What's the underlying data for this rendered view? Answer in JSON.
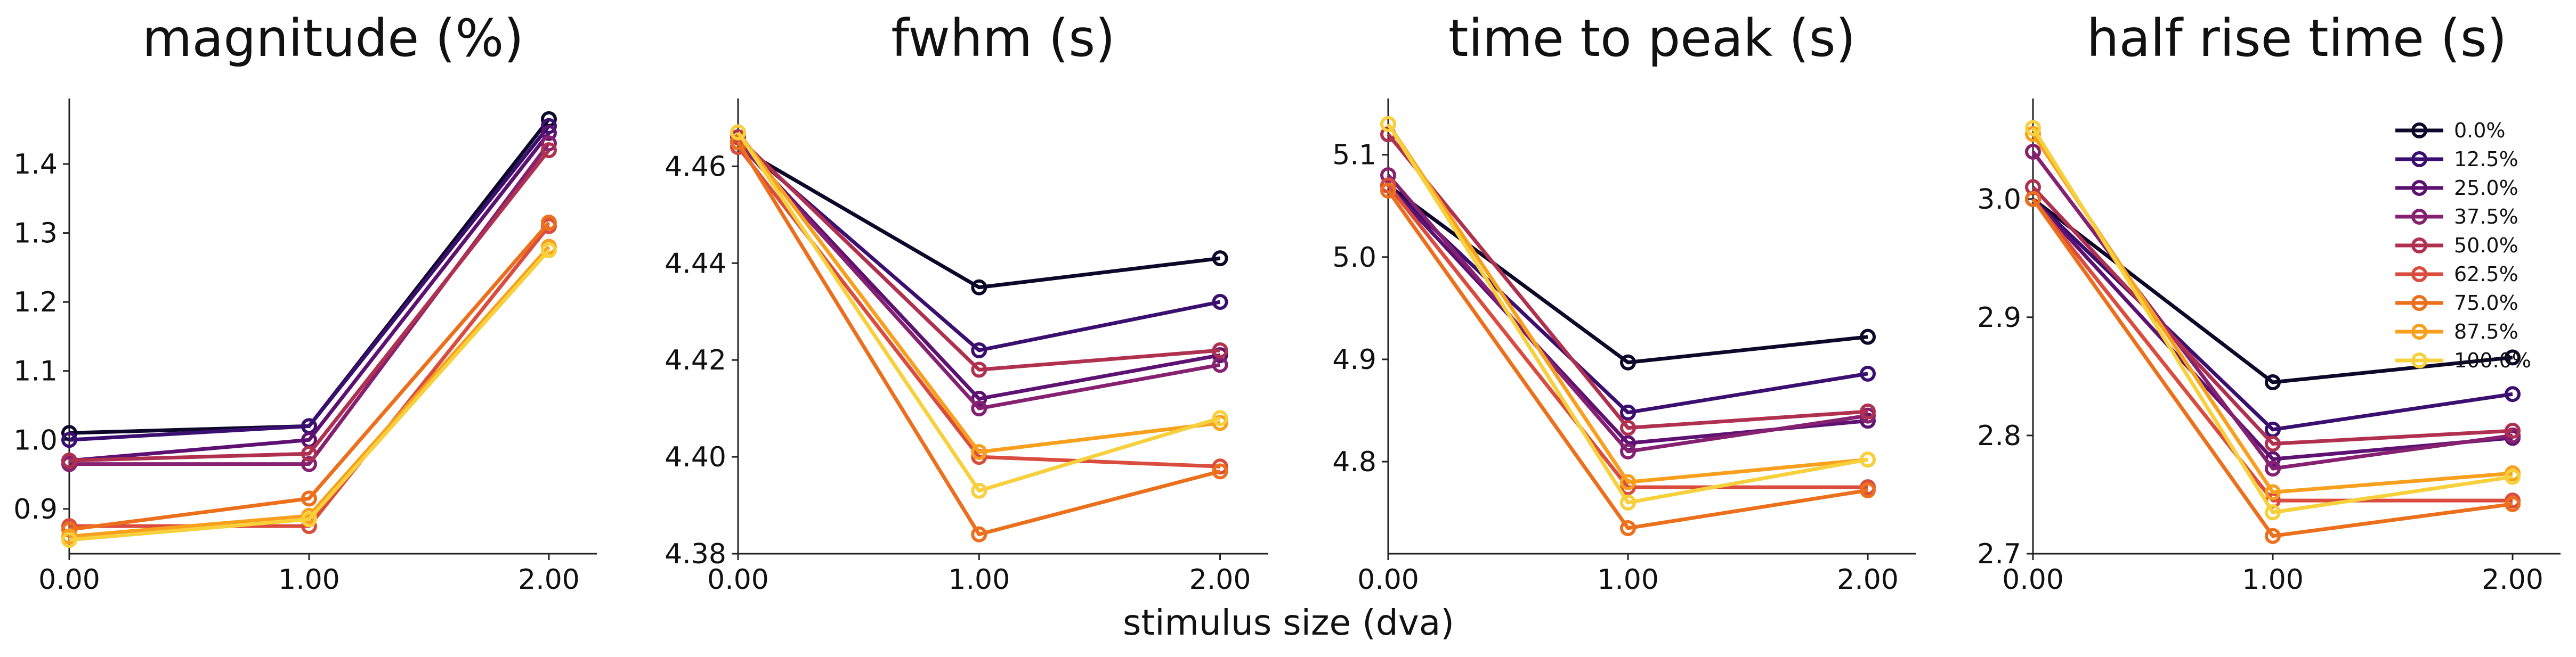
{
  "figure": {
    "xlabel": "stimulus size (dva)"
  },
  "chart_data": [
    {
      "type": "line",
      "title": "magnitude (%)",
      "x": [
        0,
        1,
        2
      ],
      "xticks": [
        "0.00",
        "1.00",
        "2.00"
      ],
      "xlim": [
        0,
        2.2
      ],
      "ylim": [
        0.835,
        1.495
      ],
      "yticks": [
        "0.9",
        "1.0",
        "1.1",
        "1.2",
        "1.3",
        "1.4"
      ],
      "ytick_values": [
        0.9,
        1.0,
        1.1,
        1.2,
        1.3,
        1.4
      ],
      "series": [
        {
          "name": "0.0%",
          "values": [
            1.01,
            1.02,
            1.465
          ]
        },
        {
          "name": "12.5%",
          "values": [
            1.0,
            1.02,
            1.455
          ]
        },
        {
          "name": "25.0%",
          "values": [
            0.97,
            1.0,
            1.445
          ]
        },
        {
          "name": "37.5%",
          "values": [
            0.965,
            0.965,
            1.43
          ]
        },
        {
          "name": "50.0%",
          "values": [
            0.97,
            0.98,
            1.42
          ]
        },
        {
          "name": "62.5%",
          "values": [
            0.875,
            0.875,
            1.31
          ]
        },
        {
          "name": "75.0%",
          "values": [
            0.87,
            0.915,
            1.315
          ]
        },
        {
          "name": "87.5%",
          "values": [
            0.86,
            0.89,
            1.28
          ]
        },
        {
          "name": "100.0%",
          "values": [
            0.855,
            0.885,
            1.275
          ]
        }
      ]
    },
    {
      "type": "line",
      "title": "fwhm (s)",
      "x": [
        0,
        1,
        2
      ],
      "xticks": [
        "0.00",
        "1.00",
        "2.00"
      ],
      "xlim": [
        0,
        2.2
      ],
      "ylim": [
        4.38,
        4.474
      ],
      "yticks": [
        "4.38",
        "4.40",
        "4.42",
        "4.44",
        "4.46"
      ],
      "ytick_values": [
        4.38,
        4.4,
        4.42,
        4.44,
        4.46
      ],
      "series": [
        {
          "name": "0.0%",
          "values": [
            4.464,
            4.435,
            4.441
          ]
        },
        {
          "name": "12.5%",
          "values": [
            4.465,
            4.422,
            4.432
          ]
        },
        {
          "name": "25.0%",
          "values": [
            4.465,
            4.412,
            4.421
          ]
        },
        {
          "name": "37.5%",
          "values": [
            4.465,
            4.41,
            4.419
          ]
        },
        {
          "name": "50.0%",
          "values": [
            4.466,
            4.418,
            4.422
          ]
        },
        {
          "name": "62.5%",
          "values": [
            4.464,
            4.4,
            4.398
          ]
        },
        {
          "name": "75.0%",
          "values": [
            4.465,
            4.384,
            4.397
          ]
        },
        {
          "name": "87.5%",
          "values": [
            4.467,
            4.401,
            4.407
          ]
        },
        {
          "name": "100.0%",
          "values": [
            4.467,
            4.393,
            4.408
          ]
        }
      ]
    },
    {
      "type": "line",
      "title": "time to peak (s)",
      "x": [
        0,
        1,
        2
      ],
      "xticks": [
        "0.00",
        "1.00",
        "2.00"
      ],
      "xlim": [
        0,
        2.2
      ],
      "ylim": [
        4.71,
        5.155
      ],
      "yticks": [
        "4.8",
        "4.9",
        "5.0",
        "5.1"
      ],
      "ytick_values": [
        4.8,
        4.9,
        5.0,
        5.1
      ],
      "series": [
        {
          "name": "0.0%",
          "values": [
            5.07,
            4.897,
            4.922
          ]
        },
        {
          "name": "12.5%",
          "values": [
            5.07,
            4.848,
            4.886
          ]
        },
        {
          "name": "25.0%",
          "values": [
            5.07,
            4.818,
            4.84
          ]
        },
        {
          "name": "37.5%",
          "values": [
            5.08,
            4.81,
            4.845
          ]
        },
        {
          "name": "50.0%",
          "values": [
            5.12,
            4.833,
            4.849
          ]
        },
        {
          "name": "62.5%",
          "values": [
            5.07,
            4.775,
            4.775
          ]
        },
        {
          "name": "75.0%",
          "values": [
            5.065,
            4.735,
            4.772
          ]
        },
        {
          "name": "87.5%",
          "values": [
            5.13,
            4.78,
            4.802
          ]
        },
        {
          "name": "100.0%",
          "values": [
            5.13,
            4.76,
            4.802
          ]
        }
      ]
    },
    {
      "type": "line",
      "title": "half rise time (s)",
      "x": [
        0,
        1,
        2
      ],
      "xticks": [
        "0.00",
        "1.00",
        "2.00"
      ],
      "xlim": [
        0,
        2.2
      ],
      "ylim": [
        2.7,
        3.085
      ],
      "yticks": [
        "2.7",
        "2.8",
        "2.9",
        "3.0"
      ],
      "ytick_values": [
        2.7,
        2.8,
        2.9,
        3.0
      ],
      "series": [
        {
          "name": "0.0%",
          "values": [
            3.0,
            2.845,
            2.866
          ]
        },
        {
          "name": "12.5%",
          "values": [
            3.0,
            2.805,
            2.835
          ]
        },
        {
          "name": "25.0%",
          "values": [
            3.0,
            2.78,
            2.798
          ]
        },
        {
          "name": "37.5%",
          "values": [
            3.04,
            2.772,
            2.8
          ]
        },
        {
          "name": "50.0%",
          "values": [
            3.01,
            2.793,
            2.804
          ]
        },
        {
          "name": "62.5%",
          "values": [
            3.0,
            2.745,
            2.745
          ]
        },
        {
          "name": "75.0%",
          "values": [
            3.0,
            2.715,
            2.742
          ]
        },
        {
          "name": "87.5%",
          "values": [
            3.055,
            2.752,
            2.768
          ]
        },
        {
          "name": "100.0%",
          "values": [
            3.06,
            2.735,
            2.765
          ]
        }
      ],
      "legend": {
        "placement": "upper-right",
        "entries": [
          "0.0%",
          "12.5%",
          "25.0%",
          "37.5%",
          "50.0%",
          "62.5%",
          "75.0%",
          "87.5%",
          "100.0%"
        ]
      }
    }
  ],
  "colors": [
    "#0d0829",
    "#3b0f70",
    "#5d1272",
    "#852170",
    "#b0314f",
    "#d94c3e",
    "#ec6f1c",
    "#f8a01e",
    "#f7d03c"
  ]
}
